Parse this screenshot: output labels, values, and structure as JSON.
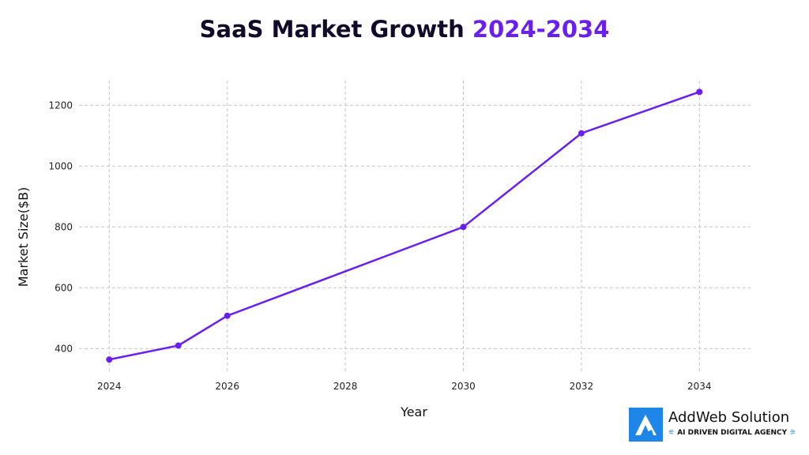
{
  "chart_data": {
    "type": "line",
    "title": "SaaS Market Growth",
    "title_highlight": "2024-2034",
    "xlabel": "Year",
    "ylabel": "Market Size($B)",
    "x": [
      2024,
      2025.17,
      2026,
      2030,
      2032,
      2034
    ],
    "values": [
      364,
      410,
      508,
      800,
      1108,
      1244
    ],
    "xticks": [
      2024,
      2026,
      2028,
      2030,
      2032,
      2034
    ],
    "yticks": [
      400,
      600,
      800,
      1000,
      1200
    ],
    "xlim": [
      2023.5,
      2034.9
    ],
    "ylim": [
      330,
      1290
    ],
    "grid": true,
    "color": "#6a1ff0"
  },
  "logo": {
    "name": "AddWeb Solution",
    "tagline": "AI DRIVEN DIGITAL AGENCY"
  }
}
